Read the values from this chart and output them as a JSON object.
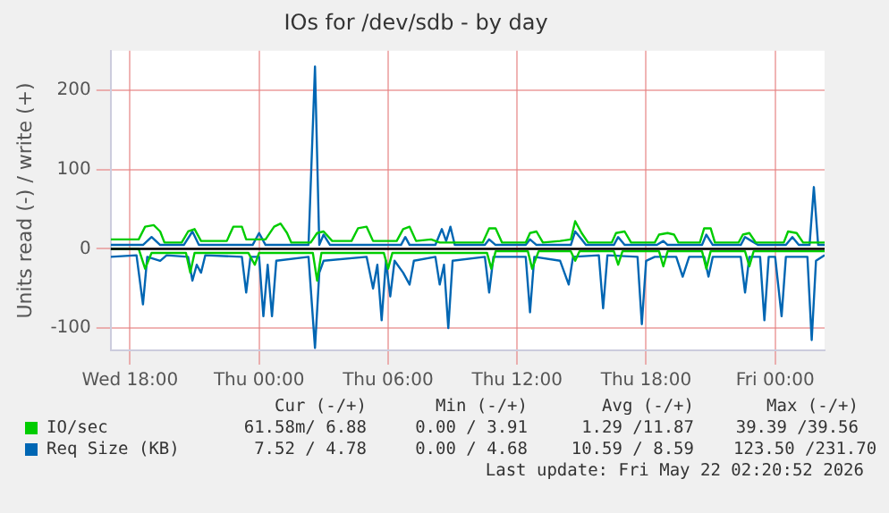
{
  "chart_data": {
    "type": "line",
    "title": "IOs for /dev/sdb - by day",
    "ylabel": "Units read (-) / write (+)",
    "xlim": [
      "2026-05-20T17:06",
      "2026-05-22T02:18"
    ],
    "ylim": [
      -128,
      250
    ],
    "xticks": [
      {
        "value": "2026-05-20T18:00",
        "label": "Wed 18:00"
      },
      {
        "value": "2026-05-21T00:00",
        "label": "Thu 00:00"
      },
      {
        "value": "2026-05-21T06:00",
        "label": "Thu 06:00"
      },
      {
        "value": "2026-05-21T12:00",
        "label": "Thu 12:00"
      },
      {
        "value": "2026-05-21T18:00",
        "label": "Thu 18:00"
      },
      {
        "value": "2026-05-22T00:00",
        "label": "Fri 00:00"
      }
    ],
    "yticks": [
      -100,
      0,
      100,
      200
    ],
    "grid": true,
    "legend": "bottom",
    "marker": "none",
    "line_style": "solid",
    "ref_lines": [
      {
        "axis": "y",
        "value": 0,
        "color": "#000000"
      }
    ],
    "series": [
      {
        "name": "IO/sec",
        "color": "#00cc00",
        "x": [
          "2026-05-20T17:06",
          "2026-05-20T18:24",
          "2026-05-20T18:42",
          "2026-05-20T19:06",
          "2026-05-20T19:24",
          "2026-05-20T19:36",
          "2026-05-20T20:24",
          "2026-05-20T20:42",
          "2026-05-20T21:00",
          "2026-05-20T21:18",
          "2026-05-20T22:30",
          "2026-05-20T22:48",
          "2026-05-20T23:12",
          "2026-05-20T23:24",
          "2026-05-21T00:18",
          "2026-05-21T00:42",
          "2026-05-21T01:00",
          "2026-05-21T01:18",
          "2026-05-21T01:30",
          "2026-05-21T02:24",
          "2026-05-21T02:42",
          "2026-05-21T03:00",
          "2026-05-21T03:24",
          "2026-05-21T04:18",
          "2026-05-21T04:36",
          "2026-05-21T05:00",
          "2026-05-21T05:18",
          "2026-05-21T06:24",
          "2026-05-21T06:42",
          "2026-05-21T07:00",
          "2026-05-21T07:18",
          "2026-05-21T08:00",
          "2026-05-21T08:24",
          "2026-05-21T10:24",
          "2026-05-21T10:42",
          "2026-05-21T11:00",
          "2026-05-21T11:18",
          "2026-05-21T12:24",
          "2026-05-21T12:36",
          "2026-05-21T12:54",
          "2026-05-21T13:12",
          "2026-05-21T14:00",
          "2026-05-21T14:30",
          "2026-05-21T14:42",
          "2026-05-21T15:00",
          "2026-05-21T15:18",
          "2026-05-21T16:24",
          "2026-05-21T16:36",
          "2026-05-21T17:00",
          "2026-05-21T17:18",
          "2026-05-21T18:24",
          "2026-05-21T18:36",
          "2026-05-21T19:00",
          "2026-05-21T19:18",
          "2026-05-21T19:30",
          "2026-05-21T20:30",
          "2026-05-21T20:42",
          "2026-05-21T21:00",
          "2026-05-21T21:12",
          "2026-05-21T22:18",
          "2026-05-21T22:30",
          "2026-05-21T22:48",
          "2026-05-21T23:06",
          "2026-05-22T00:24",
          "2026-05-22T00:36",
          "2026-05-22T01:00",
          "2026-05-22T01:18",
          "2026-05-22T02:18"
        ],
        "values": [
          12,
          12,
          28,
          30,
          22,
          8,
          8,
          22,
          25,
          10,
          10,
          28,
          28,
          12,
          12,
          28,
          32,
          20,
          8,
          8,
          20,
          22,
          10,
          10,
          26,
          28,
          10,
          10,
          25,
          28,
          10,
          12,
          8,
          8,
          26,
          26,
          8,
          8,
          20,
          22,
          8,
          10,
          12,
          35,
          20,
          8,
          8,
          20,
          22,
          8,
          8,
          18,
          20,
          18,
          8,
          8,
          26,
          26,
          8,
          8,
          18,
          20,
          8,
          8,
          22,
          20,
          8,
          8
        ]
      },
      {
        "color": "#00cc00",
        "x": [
          "2026-05-20T17:06",
          "2026-05-20T18:24",
          "2026-05-20T18:42",
          "2026-05-20T19:00",
          "2026-05-20T20:36",
          "2026-05-20T20:48",
          "2026-05-20T21:00",
          "2026-05-20T23:30",
          "2026-05-20T23:48",
          "2026-05-21T00:00",
          "2026-05-21T02:30",
          "2026-05-21T02:42",
          "2026-05-21T02:54",
          "2026-05-21T05:48",
          "2026-05-21T06:00",
          "2026-05-21T06:12",
          "2026-05-21T10:36",
          "2026-05-21T10:48",
          "2026-05-21T11:00",
          "2026-05-21T12:30",
          "2026-05-21T12:42",
          "2026-05-21T13:00",
          "2026-05-21T14:30",
          "2026-05-21T14:42",
          "2026-05-21T14:54",
          "2026-05-21T16:30",
          "2026-05-21T16:42",
          "2026-05-21T16:54",
          "2026-05-21T18:36",
          "2026-05-21T18:48",
          "2026-05-21T19:00",
          "2026-05-21T20:36",
          "2026-05-21T20:48",
          "2026-05-21T21:00",
          "2026-05-21T22:36",
          "2026-05-21T22:48",
          "2026-05-21T23:00",
          "2026-05-22T02:18"
        ],
        "values": [
          0,
          0,
          -25,
          -5,
          -5,
          -30,
          -5,
          -5,
          -20,
          -5,
          -5,
          -40,
          -5,
          -5,
          -25,
          -5,
          -5,
          -25,
          -3,
          -3,
          -25,
          -3,
          -3,
          -15,
          -3,
          -3,
          -20,
          -3,
          -3,
          -22,
          -3,
          -3,
          -25,
          -3,
          -3,
          -22,
          -3,
          -3
        ]
      },
      {
        "name": "Req Size (KB)",
        "color": "#0066b3",
        "x": [
          "2026-05-20T17:06",
          "2026-05-20T18:36",
          "2026-05-20T19:00",
          "2026-05-20T19:24",
          "2026-05-20T20:30",
          "2026-05-20T20:54",
          "2026-05-20T21:12",
          "2026-05-20T23:42",
          "2026-05-21T00:00",
          "2026-05-21T00:18",
          "2026-05-21T02:18",
          "2026-05-21T02:36",
          "2026-05-21T02:48",
          "2026-05-21T03:00",
          "2026-05-21T03:18",
          "2026-05-21T06:36",
          "2026-05-21T06:48",
          "2026-05-21T07:00",
          "2026-05-21T08:12",
          "2026-05-21T08:30",
          "2026-05-21T08:42",
          "2026-05-21T08:54",
          "2026-05-21T09:06",
          "2026-05-21T10:30",
          "2026-05-21T10:42",
          "2026-05-21T11:00",
          "2026-05-21T12:24",
          "2026-05-21T12:36",
          "2026-05-21T12:54",
          "2026-05-21T14:30",
          "2026-05-21T14:42",
          "2026-05-21T15:00",
          "2026-05-21T15:12",
          "2026-05-21T16:30",
          "2026-05-21T16:42",
          "2026-05-21T17:00",
          "2026-05-21T18:30",
          "2026-05-21T18:48",
          "2026-05-21T19:00",
          "2026-05-21T20:36",
          "2026-05-21T20:48",
          "2026-05-21T21:06",
          "2026-05-21T22:24",
          "2026-05-21T22:36",
          "2026-05-21T22:54",
          "2026-05-21T23:12",
          "2026-05-22T00:30",
          "2026-05-22T00:48",
          "2026-05-22T01:06",
          "2026-05-22T01:36",
          "2026-05-22T01:48",
          "2026-05-22T02:00",
          "2026-05-22T02:18"
        ],
        "values": [
          5,
          5,
          15,
          5,
          5,
          22,
          5,
          5,
          20,
          5,
          5,
          230,
          5,
          18,
          5,
          5,
          15,
          5,
          5,
          25,
          10,
          28,
          5,
          5,
          12,
          5,
          5,
          12,
          5,
          5,
          22,
          12,
          5,
          5,
          15,
          5,
          5,
          10,
          5,
          5,
          18,
          5,
          5,
          15,
          10,
          5,
          5,
          15,
          5,
          5,
          78,
          5,
          5
        ]
      },
      {
        "color": "#0066b3",
        "x": [
          "2026-05-20T17:06",
          "2026-05-20T18:18",
          "2026-05-20T18:36",
          "2026-05-20T18:48",
          "2026-05-20T19:24",
          "2026-05-20T19:42",
          "2026-05-20T20:42",
          "2026-05-20T20:54",
          "2026-05-20T21:06",
          "2026-05-20T21:18",
          "2026-05-20T21:30",
          "2026-05-20T23:12",
          "2026-05-20T23:24",
          "2026-05-20T23:36",
          "2026-05-21T00:00",
          "2026-05-21T00:12",
          "2026-05-21T00:24",
          "2026-05-21T00:36",
          "2026-05-21T00:48",
          "2026-05-21T02:18",
          "2026-05-21T02:36",
          "2026-05-21T02:48",
          "2026-05-21T03:00",
          "2026-05-21T05:00",
          "2026-05-21T05:18",
          "2026-05-21T05:30",
          "2026-05-21T05:42",
          "2026-05-21T05:54",
          "2026-05-21T06:06",
          "2026-05-21T06:18",
          "2026-05-21T06:42",
          "2026-05-21T07:00",
          "2026-05-21T07:12",
          "2026-05-21T08:12",
          "2026-05-21T08:24",
          "2026-05-21T08:36",
          "2026-05-21T08:48",
          "2026-05-21T09:00",
          "2026-05-21T10:30",
          "2026-05-21T10:42",
          "2026-05-21T10:54",
          "2026-05-21T12:24",
          "2026-05-21T12:36",
          "2026-05-21T12:48",
          "2026-05-21T14:00",
          "2026-05-21T14:24",
          "2026-05-21T14:36",
          "2026-05-21T15:48",
          "2026-05-21T16:00",
          "2026-05-21T16:12",
          "2026-05-21T17:36",
          "2026-05-21T17:48",
          "2026-05-21T18:00",
          "2026-05-21T18:24",
          "2026-05-21T19:24",
          "2026-05-21T19:42",
          "2026-05-21T20:00",
          "2026-05-21T20:42",
          "2026-05-21T20:54",
          "2026-05-21T21:06",
          "2026-05-21T22:24",
          "2026-05-21T22:36",
          "2026-05-21T22:48",
          "2026-05-21T23:18",
          "2026-05-21T23:30",
          "2026-05-21T23:42",
          "2026-05-22T00:00",
          "2026-05-22T00:18",
          "2026-05-22T00:30",
          "2026-05-22T01:30",
          "2026-05-22T01:42",
          "2026-05-22T01:54",
          "2026-05-22T02:18"
        ],
        "values": [
          -10,
          -8,
          -70,
          -10,
          -15,
          -8,
          -10,
          -40,
          -20,
          -30,
          -8,
          -10,
          -55,
          -10,
          -10,
          -85,
          -20,
          -85,
          -15,
          -10,
          -125,
          -30,
          -15,
          -10,
          -50,
          -20,
          -90,
          -15,
          -60,
          -15,
          -30,
          -45,
          -15,
          -10,
          -45,
          -20,
          -100,
          -15,
          -10,
          -55,
          -10,
          -10,
          -80,
          -10,
          -15,
          -45,
          -10,
          -8,
          -75,
          -8,
          -10,
          -95,
          -15,
          -10,
          -10,
          -35,
          -10,
          -10,
          -35,
          -10,
          -10,
          -55,
          -10,
          -10,
          -90,
          -10,
          -10,
          -85,
          -10,
          -10,
          -115,
          -15,
          -8
        ]
      }
    ],
    "annotations": [
      "Cur (-/+)",
      "Min (-/+)",
      "Avg (-/+)",
      "Max (-/+)",
      "61.58m/ 6.88",
      "0.00 / 3.91",
      "1.29 /11.87",
      "39.39 /39.56",
      "7.52 / 4.78",
      "0.00 / 4.68",
      "10.59 / 8.59",
      "123.50 /231.70",
      "Last update: Fri May 22 02:20:52 2026"
    ]
  }
}
